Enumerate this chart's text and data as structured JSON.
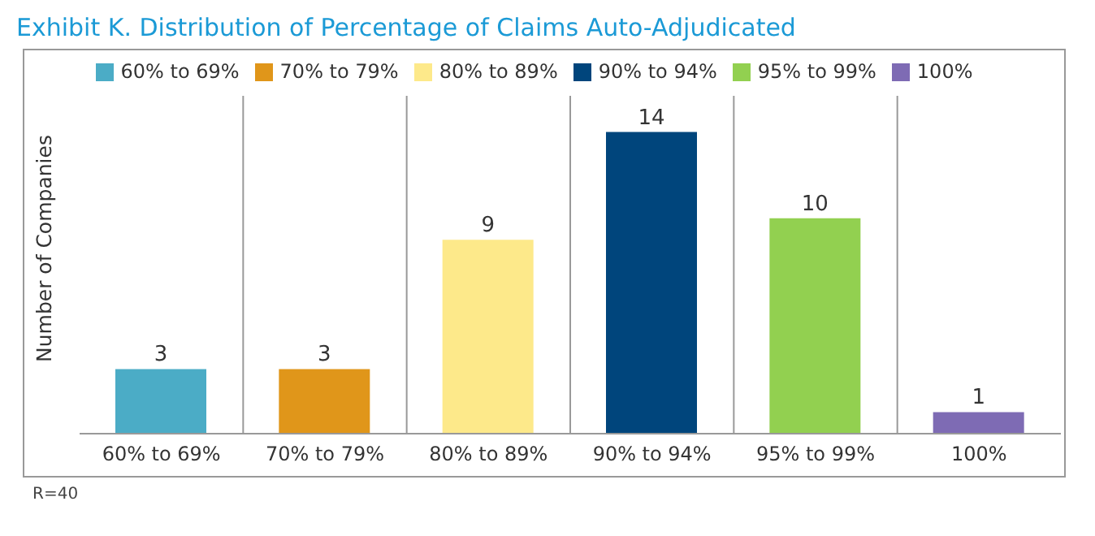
{
  "chart_data": {
    "type": "bar",
    "title": "Exhibit K. Distribution of Percentage of Claims Auto-Adjudicated",
    "ylabel": "Number of Companies",
    "categories": [
      "60% to 69%",
      "70% to 79%",
      "80% to 89%",
      "90% to 94%",
      "95% to 99%",
      "100%"
    ],
    "series": [
      {
        "name": "60% to 69%",
        "color": "#4bacc6",
        "values": [
          3,
          null,
          null,
          null,
          null,
          null
        ]
      },
      {
        "name": "70% to 79%",
        "color": "#e0961a",
        "values": [
          null,
          3,
          null,
          null,
          null,
          null
        ]
      },
      {
        "name": "80% to 89%",
        "color": "#fde98a",
        "values": [
          null,
          null,
          9,
          null,
          null,
          null
        ]
      },
      {
        "name": "90% to 94%",
        "color": "#00457c",
        "values": [
          null,
          null,
          null,
          14,
          null,
          null
        ]
      },
      {
        "name": "95% to 99%",
        "color": "#92d050",
        "values": [
          null,
          null,
          null,
          null,
          10,
          null
        ]
      },
      {
        "name": "100%",
        "color": "#7e6bb4",
        "values": [
          null,
          null,
          null,
          null,
          null,
          1
        ]
      }
    ],
    "stacked": true,
    "data_labels": true,
    "legend": "top",
    "grid": "x",
    "tick_labels": "x",
    "annotations": [
      "R=40"
    ]
  }
}
